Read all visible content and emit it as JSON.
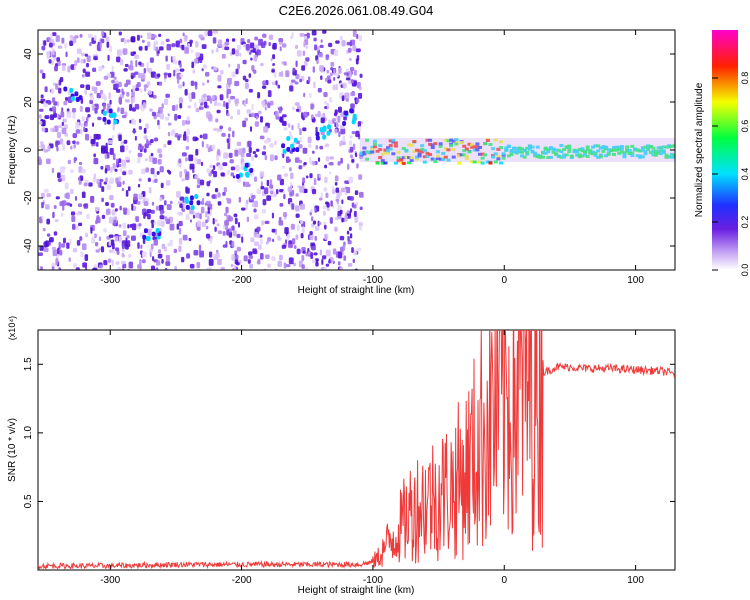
{
  "chart_data": [
    {
      "type": "heatmap",
      "title": "C2E6.2026.061.08.49.G04",
      "xlabel": "Height of straight line (km)",
      "ylabel": "Frequency (Hz)",
      "xlim": [
        -355,
        130
      ],
      "ylim": [
        -50,
        50
      ],
      "x_ticks": [
        -300,
        -200,
        -100,
        0,
        100
      ],
      "y_ticks": [
        -40,
        -20,
        0,
        20,
        40
      ],
      "colorbar": {
        "label": "Normalized spectral amplitude",
        "range": [
          0,
          1
        ],
        "ticks": [
          "0.0",
          "0.2",
          "0.4",
          "0.6",
          "0.8"
        ],
        "colormap": "rainbow (white-purple-blue-cyan-green-yellow-red-magenta)"
      },
      "features": {
        "noise_region_x": [
          -355,
          -110
        ],
        "signal_band_center_hz": 0,
        "diagonal_feature": {
          "from": [
            -330,
            25
          ],
          "to": [
            -115,
            15
          ]
        }
      },
      "colors": {
        "low": "#c9a8f5",
        "mid": "#5a16e0",
        "high": "#ff2020"
      }
    },
    {
      "type": "line",
      "xlabel": "Height of straight line (km)",
      "ylabel": "SNR (10 * v/v)",
      "y_multiplier": "(x10⁴)",
      "xlim": [
        -355,
        130
      ],
      "ylim": [
        0,
        1.75
      ],
      "x_ticks": [
        -300,
        -200,
        -100,
        0,
        100
      ],
      "y_ticks": [
        "0.5",
        "1.0",
        "1.5"
      ],
      "series": [
        {
          "color": "#f03a3a",
          "x": [
            -355,
            -300,
            -250,
            -200,
            -150,
            -110,
            -100,
            -95,
            -90,
            -80,
            -70,
            -60,
            -50,
            -40,
            -30,
            -20,
            -15,
            -10,
            -5,
            0,
            5,
            10,
            15,
            20,
            25,
            30,
            40,
            50,
            60,
            80,
            100,
            120,
            130
          ],
          "y": [
            0.03,
            0.03,
            0.04,
            0.04,
            0.04,
            0.04,
            0.06,
            0.1,
            0.18,
            0.3,
            0.45,
            0.5,
            0.55,
            0.6,
            0.7,
            0.9,
            1.05,
            1.15,
            1.2,
            1.25,
            1.28,
            1.3,
            1.33,
            1.36,
            1.4,
            1.44,
            1.48,
            1.48,
            1.47,
            1.47,
            1.46,
            1.45,
            1.43
          ]
        }
      ]
    }
  ],
  "colorbar_tick_labels": [
    "0.0",
    "0.2",
    "0.4",
    "0.6",
    "0.8"
  ]
}
